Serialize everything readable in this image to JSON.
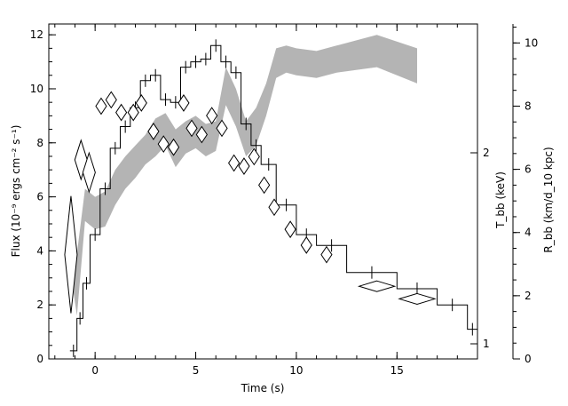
{
  "chart_data": {
    "type": "line",
    "title": "",
    "xlabel": "Time (s)",
    "ylabel_left": "Flux (10⁻⁹ ergs cm⁻² s⁻¹)",
    "ylabel_right_T": "T_bb (keV)",
    "ylabel_right_R": "R_bb (km/d_10 kpc)",
    "xlim": [
      -2.3,
      19
    ],
    "ylim": [
      0,
      12.4
    ],
    "T_ticks": [
      1,
      2
    ],
    "R_lim": [
      0,
      10.6
    ],
    "R_ticks": [
      0,
      2,
      4,
      6,
      8,
      10
    ],
    "x_ticks": [
      0,
      5,
      10,
      15
    ],
    "y_ticks": [
      0,
      2,
      4,
      6,
      8,
      10,
      12
    ],
    "grid": false,
    "flux_histogram": {
      "name": "",
      "edges": [
        -1.25,
        -0.9,
        -0.6,
        -0.25,
        0.25,
        0.75,
        1.25,
        1.75,
        2.25,
        2.75,
        3.25,
        3.75,
        4.25,
        4.75,
        5.25,
        5.75,
        6.25,
        6.75,
        7.25,
        7.75,
        8.25,
        9.0,
        10.0,
        11.0,
        12.5,
        15.0,
        17.0,
        18.5,
        19.0
      ],
      "values": [
        0.3,
        1.5,
        2.8,
        4.6,
        6.3,
        7.8,
        8.6,
        9.3,
        10.3,
        10.5,
        9.6,
        9.5,
        10.8,
        11.0,
        11.1,
        11.6,
        11.0,
        10.6,
        8.7,
        7.9,
        7.2,
        5.7,
        4.6,
        4.2,
        3.2,
        2.6,
        2.0,
        1.1
      ]
    },
    "radius_points": {
      "name": "",
      "x": [
        -1.2,
        -0.7,
        -0.3,
        0.3,
        0.8,
        1.3,
        1.9,
        2.3,
        2.9,
        3.4,
        3.9,
        4.4,
        4.8,
        5.3,
        5.8,
        6.3,
        6.9,
        7.4,
        7.9,
        8.4,
        8.9,
        9.7,
        10.5,
        11.5,
        14.0,
        16.0
      ],
      "y": [
        3.3,
        6.3,
        5.9,
        8.0,
        8.2,
        7.8,
        7.8,
        8.1,
        7.2,
        6.8,
        6.7,
        8.1,
        7.3,
        7.1,
        7.7,
        7.3,
        6.2,
        6.1,
        6.4,
        5.5,
        4.8,
        4.1,
        3.6,
        3.3,
        2.3,
        1.9
      ]
    },
    "temperature_band": {
      "name": "",
      "x": [
        -1.3,
        -0.9,
        -0.5,
        0.0,
        0.5,
        1.0,
        1.5,
        2.0,
        2.5,
        3.0,
        3.5,
        4.0,
        4.5,
        5.0,
        5.5,
        6.0,
        6.5,
        7.0,
        7.5,
        8.0,
        8.5,
        9.0,
        9.5,
        10.0,
        11.0,
        12.0,
        14.0,
        16.0
      ],
      "upper": [
        4.8,
        3.9,
        6.3,
        6.0,
        6.2,
        7.0,
        7.5,
        7.9,
        8.3,
        8.9,
        9.1,
        8.5,
        8.8,
        9.0,
        8.7,
        8.8,
        10.8,
        10.0,
        8.8,
        9.3,
        10.2,
        11.5,
        11.6,
        11.5,
        11.4,
        11.6,
        12.0,
        11.5
      ],
      "lower": [
        3.6,
        1.6,
        5.1,
        4.8,
        4.9,
        5.7,
        6.3,
        6.7,
        7.2,
        7.5,
        7.9,
        7.1,
        7.6,
        7.8,
        7.5,
        7.7,
        9.4,
        8.6,
        7.5,
        7.9,
        9.0,
        10.4,
        10.6,
        10.5,
        10.4,
        10.6,
        10.8,
        10.2
      ]
    }
  }
}
